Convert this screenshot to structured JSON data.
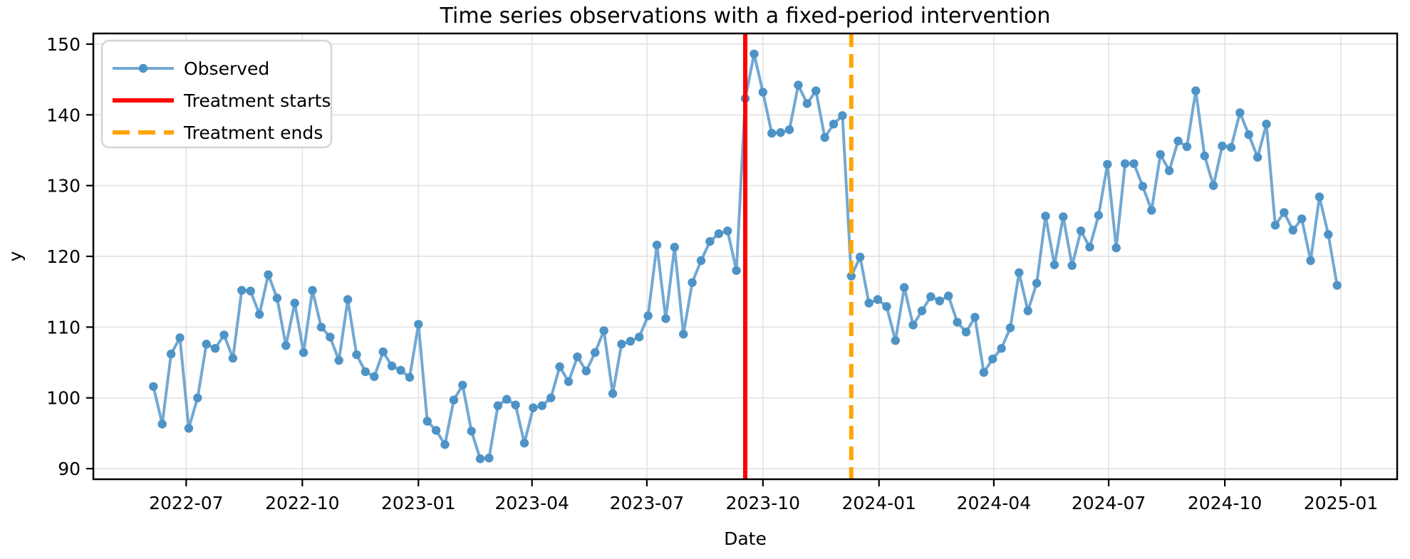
{
  "chart_data": {
    "type": "line",
    "title": "Time series observations with a fixed-period intervention",
    "xlabel": "Date",
    "ylabel": "y",
    "grid": true,
    "legend_position": "upper-left",
    "ylim": [
      88.5,
      151.5
    ],
    "xlim_weeks": [
      -6.8,
      140.8
    ],
    "y_ticks": [
      90,
      100,
      110,
      120,
      130,
      140,
      150
    ],
    "x_ticks": [
      {
        "label": "2022-07",
        "week": 3.71
      },
      {
        "label": "2022-10",
        "week": 16.86
      },
      {
        "label": "2023-01",
        "week": 30.0
      },
      {
        "label": "2023-04",
        "week": 42.86
      },
      {
        "label": "2023-07",
        "week": 55.86
      },
      {
        "label": "2023-10",
        "week": 69.0
      },
      {
        "label": "2024-01",
        "week": 82.14
      },
      {
        "label": "2024-04",
        "week": 95.14
      },
      {
        "label": "2024-07",
        "week": 108.14
      },
      {
        "label": "2024-10",
        "week": 121.29
      },
      {
        "label": "2025-01",
        "week": 134.43
      }
    ],
    "series": [
      {
        "name": "Observed",
        "marker": "circle",
        "values": [
          101.6,
          96.3,
          106.2,
          108.5,
          95.7,
          100.0,
          107.6,
          107.0,
          108.9,
          105.6,
          115.2,
          115.1,
          111.8,
          117.4,
          114.1,
          107.4,
          113.4,
          106.4,
          115.2,
          110.0,
          108.6,
          105.3,
          113.9,
          106.1,
          103.7,
          103.0,
          106.5,
          104.5,
          103.9,
          102.9,
          110.4,
          96.7,
          95.4,
          93.4,
          99.7,
          101.8,
          95.3,
          91.4,
          91.5,
          98.9,
          99.8,
          99.0,
          93.6,
          98.6,
          98.9,
          100.0,
          104.4,
          102.3,
          105.8,
          103.8,
          106.4,
          109.5,
          100.6,
          107.6,
          108.0,
          108.6,
          111.6,
          121.6,
          111.2,
          121.3,
          109.0,
          116.3,
          119.4,
          122.1,
          123.2,
          123.6,
          118.0,
          142.3,
          148.6,
          143.2,
          137.4,
          137.5,
          137.9,
          144.2,
          141.6,
          143.4,
          136.8,
          138.7,
          139.9,
          117.2,
          119.9,
          113.4,
          113.9,
          112.9,
          108.1,
          115.6,
          110.3,
          112.3,
          114.3,
          113.7,
          114.4,
          110.7,
          109.3,
          111.4,
          103.6,
          105.5,
          107.0,
          109.9,
          117.7,
          112.3,
          116.2,
          125.7,
          118.8,
          125.6,
          118.7,
          123.6,
          121.3,
          125.8,
          133.0,
          121.2,
          133.1,
          133.1,
          129.9,
          126.5,
          134.4,
          132.1,
          136.3,
          135.5,
          143.4,
          134.2,
          130.0,
          135.6,
          135.4,
          140.3,
          137.2,
          134.0,
          138.7,
          124.4,
          126.2,
          123.7,
          125.3,
          119.4,
          128.4,
          123.1,
          115.9
        ]
      }
    ],
    "vlines": [
      {
        "label": "Treatment starts",
        "week": 67,
        "color": "#ff0000",
        "dash": "solid"
      },
      {
        "label": "Treatment ends",
        "week": 79,
        "color": "#ffa500",
        "dash": "dashed"
      }
    ]
  },
  "legend": {
    "items": [
      {
        "label": "Observed",
        "type": "line-marker",
        "color": "#72a8d3"
      },
      {
        "label": "Treatment starts",
        "type": "line",
        "color": "#ff0000"
      },
      {
        "label": "Treatment ends",
        "type": "dashed-line",
        "color": "#ffa500"
      }
    ]
  },
  "colors": {
    "observed_line": "#72a8d3",
    "observed_marker": "#4e93c6",
    "treatment_start": "#ff0000",
    "treatment_end": "#ffa500",
    "grid": "#e2e2e2",
    "spine": "#000000",
    "legend_border": "#d5d5d5",
    "background": "#ffffff"
  }
}
